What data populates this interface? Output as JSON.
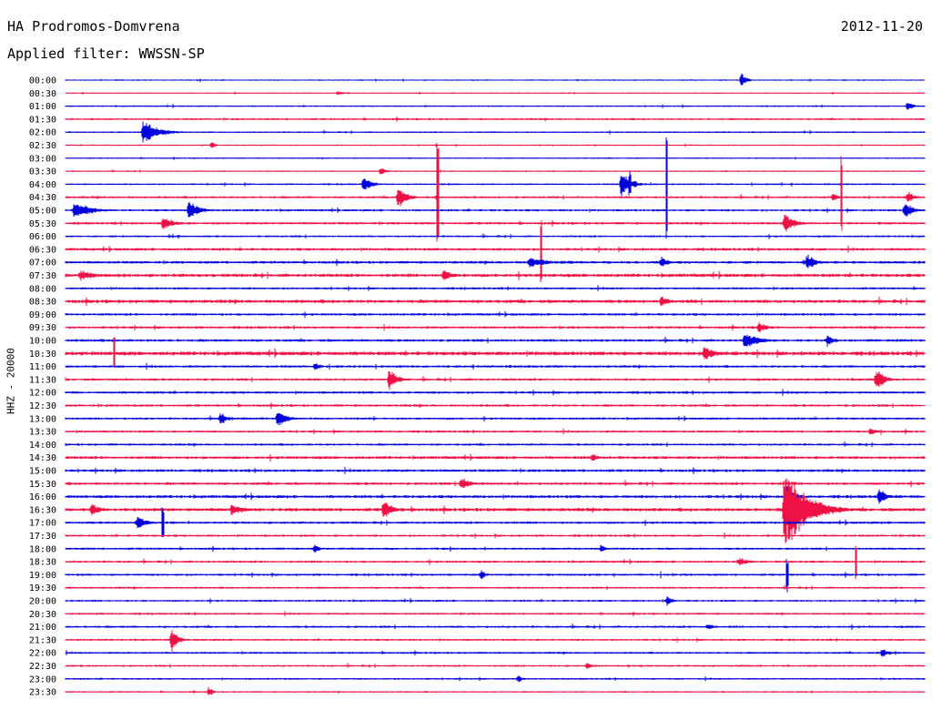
{
  "header": {
    "station": "HA Prodromos-Domvrena",
    "date": "2012-11-20",
    "filter": "Applied filter: WWSSN-SP"
  },
  "channel_label": "HHZ - 20000",
  "colors": {
    "trace_a": "#0000dd",
    "trace_b": "#ee1144",
    "background": "#ffffff"
  },
  "chart_data": {
    "type": "line",
    "title": "HA Prodromos-Domvrena",
    "subtitle": "Applied filter: WWSSN-SP",
    "ylabel": "HHZ - 20000",
    "grid": false,
    "trace_minutes": 30,
    "row_labels": [
      "00:00",
      "00:30",
      "01:00",
      "01:30",
      "02:00",
      "02:30",
      "03:00",
      "03:30",
      "04:00",
      "04:30",
      "05:00",
      "05:30",
      "06:00",
      "06:30",
      "07:00",
      "07:30",
      "08:00",
      "08:30",
      "09:00",
      "09:30",
      "10:00",
      "10:30",
      "11:00",
      "11:30",
      "12:00",
      "12:30",
      "13:00",
      "13:30",
      "14:00",
      "14:30",
      "15:00",
      "15:30",
      "16:00",
      "16:30",
      "17:00",
      "17:30",
      "18:00",
      "18:30",
      "19:00",
      "19:30",
      "20:00",
      "20:30",
      "21:00",
      "21:30",
      "22:00",
      "22:30",
      "23:00",
      "23:30"
    ],
    "row_noise": [
      0.6,
      0.5,
      0.7,
      0.9,
      0.7,
      0.6,
      0.6,
      0.6,
      0.8,
      1.0,
      1.0,
      1.1,
      0.9,
      1.2,
      1.2,
      1.5,
      1.0,
      1.5,
      1.1,
      1.1,
      1.2,
      1.7,
      1.1,
      1.1,
      1.1,
      1.1,
      1.0,
      1.0,
      1.0,
      1.3,
      1.2,
      1.2,
      1.3,
      1.5,
      1.1,
      1.0,
      1.0,
      1.0,
      1.0,
      0.9,
      0.9,
      0.9,
      1.0,
      0.9,
      0.9,
      0.9,
      0.8,
      0.7
    ],
    "events": [
      {
        "row": 0,
        "minute": 23.6,
        "amplitude": 9,
        "duration_min": 0.5,
        "spike": false
      },
      {
        "row": 1,
        "minute": 9.5,
        "amplitude": 3,
        "duration_min": 0.8,
        "spike": false
      },
      {
        "row": 2,
        "minute": 29.4,
        "amplitude": 8,
        "duration_min": 0.5,
        "spike": false
      },
      {
        "row": 4,
        "minute": 2.7,
        "amplitude": 14,
        "duration_min": 1.6,
        "spike": false
      },
      {
        "row": 5,
        "minute": 5.1,
        "amplitude": 5,
        "duration_min": 0.4,
        "spike": false
      },
      {
        "row": 7,
        "minute": 11.0,
        "amplitude": 6,
        "duration_min": 0.5,
        "spike": false
      },
      {
        "row": 8,
        "minute": 10.4,
        "amplitude": 11,
        "duration_min": 0.8,
        "spike": false
      },
      {
        "row": 8,
        "minute": 19.4,
        "amplitude": 16,
        "duration_min": 1.0,
        "spike": false
      },
      {
        "row": 8,
        "minute": 19.7,
        "amplitude": 14,
        "duration_min": 0.1,
        "spike": true
      },
      {
        "row": 8,
        "minute": 21.0,
        "amplitude": 60,
        "duration_min": 0.1,
        "spike": true
      },
      {
        "row": 9,
        "minute": 11.6,
        "amplitude": 14,
        "duration_min": 0.9,
        "spike": false
      },
      {
        "row": 9,
        "minute": 13.0,
        "amplitude": 60,
        "duration_min": 0.1,
        "spike": true
      },
      {
        "row": 9,
        "minute": 26.8,
        "amplitude": 6,
        "duration_min": 0.5,
        "spike": false
      },
      {
        "row": 9,
        "minute": 27.1,
        "amplitude": 50,
        "duration_min": 0.1,
        "spike": true
      },
      {
        "row": 9,
        "minute": 29.4,
        "amplitude": 8,
        "duration_min": 0.7,
        "spike": false
      },
      {
        "row": 10,
        "minute": 0.3,
        "amplitude": 12,
        "duration_min": 1.6,
        "spike": false
      },
      {
        "row": 10,
        "minute": 4.3,
        "amplitude": 12,
        "duration_min": 1.0,
        "spike": false
      },
      {
        "row": 10,
        "minute": 29.3,
        "amplitude": 12,
        "duration_min": 0.8,
        "spike": false
      },
      {
        "row": 11,
        "minute": 3.4,
        "amplitude": 10,
        "duration_min": 1.0,
        "spike": false
      },
      {
        "row": 11,
        "minute": 25.1,
        "amplitude": 12,
        "duration_min": 1.0,
        "spike": false
      },
      {
        "row": 13,
        "minute": 16.6,
        "amplitude": 40,
        "duration_min": 0.1,
        "spike": true
      },
      {
        "row": 14,
        "minute": 16.2,
        "amplitude": 8,
        "duration_min": 1.6,
        "spike": false
      },
      {
        "row": 14,
        "minute": 20.8,
        "amplitude": 8,
        "duration_min": 0.7,
        "spike": false
      },
      {
        "row": 14,
        "minute": 25.9,
        "amplitude": 12,
        "duration_min": 0.8,
        "spike": false
      },
      {
        "row": 15,
        "minute": 0.5,
        "amplitude": 7,
        "duration_min": 1.6,
        "spike": false
      },
      {
        "row": 15,
        "minute": 13.2,
        "amplitude": 8,
        "duration_min": 0.9,
        "spike": false
      },
      {
        "row": 17,
        "minute": 20.8,
        "amplitude": 7,
        "duration_min": 0.8,
        "spike": false
      },
      {
        "row": 19,
        "minute": 24.2,
        "amplitude": 8,
        "duration_min": 0.8,
        "spike": false
      },
      {
        "row": 20,
        "minute": 23.7,
        "amplitude": 10,
        "duration_min": 1.5,
        "spike": false
      },
      {
        "row": 20,
        "minute": 26.6,
        "amplitude": 8,
        "duration_min": 0.7,
        "spike": false
      },
      {
        "row": 21,
        "minute": 1.7,
        "amplitude": 20,
        "duration_min": 0.1,
        "spike": true
      },
      {
        "row": 21,
        "minute": 22.3,
        "amplitude": 12,
        "duration_min": 1.0,
        "spike": false
      },
      {
        "row": 22,
        "minute": 8.7,
        "amplitude": 7,
        "duration_min": 0.5,
        "spike": false
      },
      {
        "row": 23,
        "minute": 11.3,
        "amplitude": 14,
        "duration_min": 0.8,
        "spike": false
      },
      {
        "row": 23,
        "minute": 28.3,
        "amplitude": 15,
        "duration_min": 0.8,
        "spike": false
      },
      {
        "row": 26,
        "minute": 5.4,
        "amplitude": 9,
        "duration_min": 0.6,
        "spike": false
      },
      {
        "row": 26,
        "minute": 7.4,
        "amplitude": 13,
        "duration_min": 0.8,
        "spike": false
      },
      {
        "row": 27,
        "minute": 28.1,
        "amplitude": 5,
        "duration_min": 0.8,
        "spike": false
      },
      {
        "row": 29,
        "minute": 18.4,
        "amplitude": 6,
        "duration_min": 0.6,
        "spike": false
      },
      {
        "row": 31,
        "minute": 13.8,
        "amplitude": 9,
        "duration_min": 0.9,
        "spike": false
      },
      {
        "row": 32,
        "minute": 25.2,
        "amplitude": 14,
        "duration_min": 0.8,
        "spike": false
      },
      {
        "row": 32,
        "minute": 28.4,
        "amplitude": 12,
        "duration_min": 0.7,
        "spike": false
      },
      {
        "row": 33,
        "minute": 0.9,
        "amplitude": 8,
        "duration_min": 1.0,
        "spike": false
      },
      {
        "row": 33,
        "minute": 5.8,
        "amplitude": 8,
        "duration_min": 1.2,
        "spike": false
      },
      {
        "row": 33,
        "minute": 11.1,
        "amplitude": 14,
        "duration_min": 0.8,
        "spike": false
      },
      {
        "row": 33,
        "minute": 25.1,
        "amplitude": 55,
        "duration_min": 2.2,
        "spike": false
      },
      {
        "row": 34,
        "minute": 2.5,
        "amplitude": 8,
        "duration_min": 1.0,
        "spike": false
      },
      {
        "row": 34,
        "minute": 3.4,
        "amplitude": 18,
        "duration_min": 0.1,
        "spike": true
      },
      {
        "row": 36,
        "minute": 8.7,
        "amplitude": 7,
        "duration_min": 0.5,
        "spike": false
      },
      {
        "row": 36,
        "minute": 18.7,
        "amplitude": 6,
        "duration_min": 0.5,
        "spike": false
      },
      {
        "row": 37,
        "minute": 23.5,
        "amplitude": 6,
        "duration_min": 1.0,
        "spike": false
      },
      {
        "row": 37,
        "minute": 27.6,
        "amplitude": 20,
        "duration_min": 0.1,
        "spike": true
      },
      {
        "row": 38,
        "minute": 14.5,
        "amplitude": 7,
        "duration_min": 0.5,
        "spike": false
      },
      {
        "row": 38,
        "minute": 25.2,
        "amplitude": 20,
        "duration_min": 0.1,
        "spike": true
      },
      {
        "row": 40,
        "minute": 21.0,
        "amplitude": 6,
        "duration_min": 0.6,
        "spike": false
      },
      {
        "row": 42,
        "minute": 22.4,
        "amplitude": 5,
        "duration_min": 0.8,
        "spike": false
      },
      {
        "row": 43,
        "minute": 3.7,
        "amplitude": 15,
        "duration_min": 0.6,
        "spike": false
      },
      {
        "row": 44,
        "minute": 28.5,
        "amplitude": 6,
        "duration_min": 0.8,
        "spike": false
      },
      {
        "row": 45,
        "minute": 18.2,
        "amplitude": 5,
        "duration_min": 0.5,
        "spike": false
      },
      {
        "row": 46,
        "minute": 15.8,
        "amplitude": 5,
        "duration_min": 0.5,
        "spike": false
      },
      {
        "row": 47,
        "minute": 5.0,
        "amplitude": 7,
        "duration_min": 0.4,
        "spike": false
      }
    ]
  }
}
